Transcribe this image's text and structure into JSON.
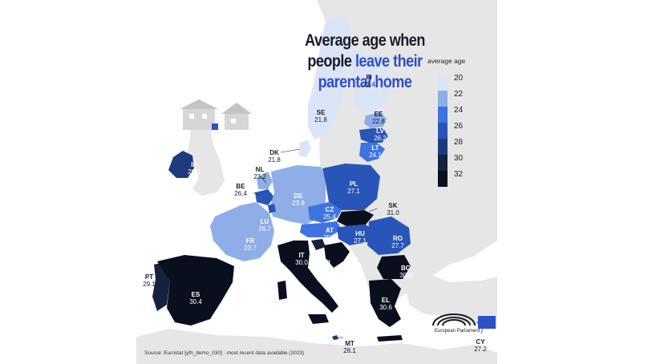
{
  "title": {
    "line1": "Average age when",
    "line2_plain": "people ",
    "line2_accent": "leave their",
    "line3_accent": "parental home"
  },
  "legend": {
    "title": "average age",
    "ticks": [
      "20",
      "22",
      "24",
      "26",
      "28",
      "30",
      "32"
    ],
    "colors": [
      "#dce4f7",
      "#8faee8",
      "#3f74e0",
      "#2a55b8",
      "#1f3a7d",
      "#17213f",
      "#0a0f1e"
    ]
  },
  "countries": [
    {
      "code": "FI",
      "value": "21.4"
    },
    {
      "code": "SE",
      "value": "21.8"
    },
    {
      "code": "EE",
      "value": "22.8"
    },
    {
      "code": "LV",
      "value": "26.2"
    },
    {
      "code": "LT",
      "value": "24.1"
    },
    {
      "code": "DK",
      "value": "21.8"
    },
    {
      "code": "IE",
      "value": "28.0"
    },
    {
      "code": "NL",
      "value": "23.2"
    },
    {
      "code": "BE",
      "value": "26.4"
    },
    {
      "code": "DE",
      "value": "23.9"
    },
    {
      "code": "PL",
      "value": "27.1"
    },
    {
      "code": "LU",
      "value": "26.7"
    },
    {
      "code": "CZ",
      "value": "25.4"
    },
    {
      "code": "SK",
      "value": "31.0"
    },
    {
      "code": "FR",
      "value": "23.7"
    },
    {
      "code": "AT",
      "value": "25.3"
    },
    {
      "code": "HU",
      "value": "27.1"
    },
    {
      "code": "RO",
      "value": "27.7"
    },
    {
      "code": "IT",
      "value": "30.0"
    },
    {
      "code": "SI",
      "value": "29.1"
    },
    {
      "code": "HR",
      "value": "31.8"
    },
    {
      "code": "BG",
      "value": "30.0"
    },
    {
      "code": "PT",
      "value": "29.1"
    },
    {
      "code": "ES",
      "value": "30.4"
    },
    {
      "code": "EL",
      "value": "30.6"
    },
    {
      "code": "MT",
      "value": "28.1"
    },
    {
      "code": "CY",
      "value": "27.2"
    }
  ],
  "source": "Source: Eurostat [yth_demo_030] · most recent data available (2023)",
  "logo_text": "European Parliament",
  "colors": {
    "title": "#1b1b2a",
    "accent": "#2f4fc9",
    "non_eu": "#e6e6e6"
  }
}
